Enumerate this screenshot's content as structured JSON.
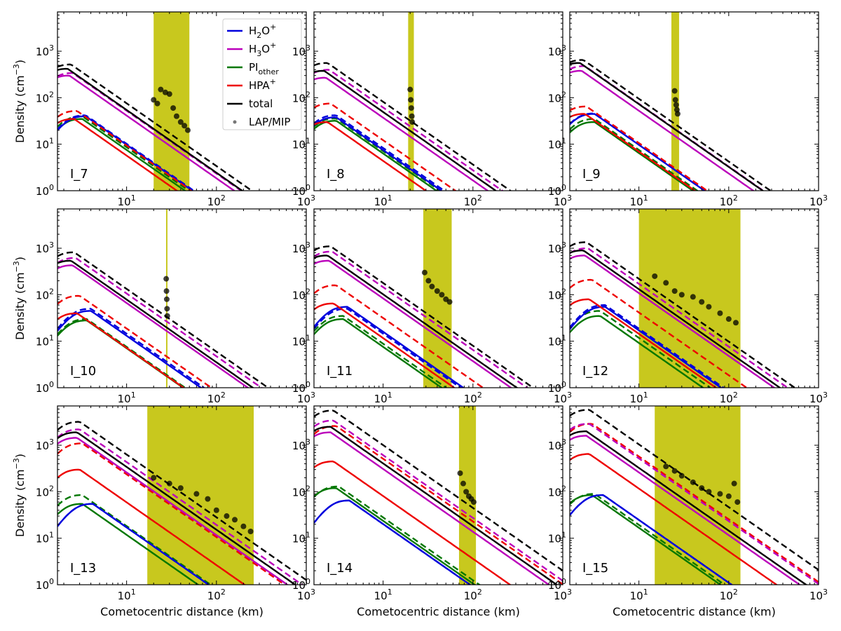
{
  "chart_data": {
    "type": "line",
    "layout": "3x3 grid of log-log panels",
    "shared_x_label": "Cometocentric distance (km)",
    "shared_y_label": "Density (cm⁻³)",
    "y_label_parts": {
      "main": "Density (cm",
      "sup": "−3",
      "close": ")"
    },
    "x_scale": "log",
    "y_scale": "log",
    "xlim": [
      1.7,
      1000
    ],
    "ylim": [
      1,
      7000
    ],
    "x_ticks": [
      10,
      100,
      1000
    ],
    "x_tick_labels": [
      {
        "base": "10",
        "exp": "1"
      },
      {
        "base": "10",
        "exp": "2"
      },
      {
        "base": "10",
        "exp": "3"
      }
    ],
    "y_ticks": [
      1,
      10,
      100,
      1000
    ],
    "y_tick_labels": [
      {
        "base": "10",
        "exp": "0"
      },
      {
        "base": "10",
        "exp": "1"
      },
      {
        "base": "10",
        "exp": "2"
      },
      {
        "base": "10",
        "exp": "3"
      }
    ],
    "line_styles": {
      "solid": "model (solid)",
      "dashed": "model (dashed)"
    },
    "legend": {
      "location": "upper right of first panel",
      "entries": [
        {
          "key": "h2o",
          "label": {
            "main": "H",
            "sub": "2",
            "rest": "O",
            "sup": "+"
          },
          "color": "#0000dd",
          "kind": "line"
        },
        {
          "key": "h3o",
          "label": {
            "main": "H",
            "sub": "3",
            "rest": "O",
            "sup": "+"
          },
          "color": "#bb00bb",
          "kind": "line"
        },
        {
          "key": "pi",
          "label": {
            "main": "PI",
            "sub": "other",
            "rest": "",
            "sup": ""
          },
          "color": "#007700",
          "kind": "line"
        },
        {
          "key": "hpa",
          "label": {
            "main": "HPA",
            "sub": "",
            "rest": "",
            "sup": "+"
          },
          "color": "#ee0000",
          "kind": "line"
        },
        {
          "key": "total",
          "label": {
            "main": "total",
            "sub": "",
            "rest": "",
            "sup": ""
          },
          "color": "#000000",
          "kind": "line"
        },
        {
          "key": "obs",
          "label": {
            "main": "LAP/MIP",
            "sub": "",
            "rest": "",
            "sup": ""
          },
          "color": "#777777",
          "kind": "scatter"
        }
      ]
    },
    "shade_color": "#c8c81e",
    "panels": [
      {
        "label": "I_7",
        "shade": [
          20,
          50
        ],
        "peaks": {
          "total": [
            2.2,
            420,
            2.4,
            520
          ],
          "h3o": [
            2.3,
            300,
            2.5,
            340
          ],
          "h2o": [
            3.5,
            40,
            3.5,
            42
          ],
          "pi": [
            3.2,
            35,
            3.2,
            40
          ],
          "hpa": [
            2.6,
            35,
            2.8,
            52
          ]
        },
        "observed": [
          {
            "x": 20,
            "y": 90
          },
          {
            "x": 22,
            "y": 75
          },
          {
            "x": 24,
            "y": 150
          },
          {
            "x": 27,
            "y": 130
          },
          {
            "x": 30,
            "y": 120
          },
          {
            "x": 33,
            "y": 60
          },
          {
            "x": 36,
            "y": 40
          },
          {
            "x": 40,
            "y": 30
          },
          {
            "x": 44,
            "y": 25
          },
          {
            "x": 48,
            "y": 20
          }
        ]
      },
      {
        "label": "I_8",
        "shade": [
          19,
          22
        ],
        "peaks": {
          "total": [
            2.2,
            380,
            2.4,
            560
          ],
          "h3o": [
            2.3,
            270,
            2.5,
            400
          ],
          "h2o": [
            3.0,
            38,
            3.0,
            42
          ],
          "pi": [
            3.0,
            32,
            3.0,
            36
          ],
          "hpa": [
            2.4,
            30,
            2.6,
            75
          ]
        },
        "observed": [
          {
            "x": 20,
            "y": 150
          },
          {
            "x": 20.3,
            "y": 90
          },
          {
            "x": 20.6,
            "y": 60
          },
          {
            "x": 20.9,
            "y": 40
          },
          {
            "x": 21.1,
            "y": 30
          }
        ]
      },
      {
        "label": "I_9",
        "shade": [
          23,
          28
        ],
        "peaks": {
          "total": [
            2.2,
            560,
            2.4,
            650
          ],
          "h3o": [
            2.3,
            380,
            2.5,
            480
          ],
          "h2o": [
            3.2,
            45,
            3.2,
            46
          ],
          "pi": [
            3.2,
            30,
            3.2,
            35
          ],
          "hpa": [
            2.5,
            45,
            2.6,
            65
          ]
        },
        "observed": [
          {
            "x": 25,
            "y": 140
          },
          {
            "x": 25.5,
            "y": 90
          },
          {
            "x": 26,
            "y": 70
          },
          {
            "x": 26.5,
            "y": 55
          },
          {
            "x": 27,
            "y": 45
          }
        ]
      },
      {
        "label": "I_10",
        "shade": [
          27.5,
          28.5
        ],
        "peaks": {
          "total": [
            2.4,
            540,
            2.6,
            820
          ],
          "h3o": [
            2.5,
            430,
            2.7,
            620
          ],
          "h2o": [
            4.0,
            45,
            4.0,
            50
          ],
          "pi": [
            3.6,
            28,
            3.6,
            30
          ],
          "hpa": [
            2.8,
            40,
            3.0,
            95
          ]
        },
        "observed": [
          {
            "x": 27.6,
            "y": 220
          },
          {
            "x": 27.8,
            "y": 120
          },
          {
            "x": 28,
            "y": 80
          },
          {
            "x": 28.2,
            "y": 50
          },
          {
            "x": 28.4,
            "y": 35
          }
        ]
      },
      {
        "label": "I_11",
        "shade": [
          28,
          58
        ],
        "peaks": {
          "total": [
            2.4,
            700,
            2.6,
            1100
          ],
          "h3o": [
            2.5,
            540,
            2.7,
            850
          ],
          "h2o": [
            4.0,
            55,
            4.0,
            50
          ],
          "pi": [
            3.6,
            30,
            3.6,
            35
          ],
          "hpa": [
            2.8,
            65,
            3.0,
            160
          ]
        },
        "observed": [
          {
            "x": 29,
            "y": 300
          },
          {
            "x": 32,
            "y": 200
          },
          {
            "x": 35,
            "y": 150
          },
          {
            "x": 40,
            "y": 120
          },
          {
            "x": 45,
            "y": 100
          },
          {
            "x": 50,
            "y": 80
          },
          {
            "x": 55,
            "y": 70
          }
        ]
      },
      {
        "label": "I_12",
        "shade": [
          10,
          135
        ],
        "peaks": {
          "total": [
            2.4,
            900,
            2.6,
            1350
          ],
          "h3o": [
            2.5,
            700,
            2.7,
            1000
          ],
          "h2o": [
            4.2,
            55,
            4.2,
            60
          ],
          "pi": [
            3.7,
            35,
            3.7,
            45
          ],
          "hpa": [
            2.8,
            80,
            3.0,
            210
          ]
        },
        "observed": [
          {
            "x": 15,
            "y": 250
          },
          {
            "x": 20,
            "y": 180
          },
          {
            "x": 25,
            "y": 120
          },
          {
            "x": 30,
            "y": 100
          },
          {
            "x": 40,
            "y": 90
          },
          {
            "x": 50,
            "y": 70
          },
          {
            "x": 60,
            "y": 55
          },
          {
            "x": 80,
            "y": 40
          },
          {
            "x": 100,
            "y": 30
          },
          {
            "x": 120,
            "y": 25
          }
        ]
      },
      {
        "label": "I_13",
        "shade": [
          17,
          260
        ],
        "peaks": {
          "total": [
            2.8,
            1900,
            3.0,
            3200
          ],
          "h3o": [
            2.8,
            1450,
            3.0,
            2200
          ],
          "h2o": [
            4.2,
            55,
            4.2,
            55
          ],
          "pi": [
            3.2,
            55,
            3.2,
            85
          ],
          "hpa": [
            3.0,
            300,
            3.2,
            1100
          ]
        },
        "observed": [
          {
            "x": 20,
            "y": 200
          },
          {
            "x": 30,
            "y": 150
          },
          {
            "x": 40,
            "y": 120
          },
          {
            "x": 60,
            "y": 90
          },
          {
            "x": 80,
            "y": 70
          },
          {
            "x": 100,
            "y": 40
          },
          {
            "x": 130,
            "y": 30
          },
          {
            "x": 160,
            "y": 25
          },
          {
            "x": 200,
            "y": 18
          },
          {
            "x": 240,
            "y": 14
          }
        ]
      },
      {
        "label": "I_14",
        "shade": [
          70,
          108
        ],
        "peaks": {
          "total": [
            2.6,
            2500,
            2.8,
            5600
          ],
          "h3o": [
            2.6,
            1900,
            2.8,
            3400
          ],
          "h2o": [
            4.2,
            65,
            4.2,
            65
          ],
          "pi": [
            3.0,
            120,
            3.2,
            130
          ],
          "hpa": [
            2.8,
            450,
            3.0,
            2600
          ]
        },
        "observed": [
          {
            "x": 72,
            "y": 250
          },
          {
            "x": 78,
            "y": 150
          },
          {
            "x": 84,
            "y": 100
          },
          {
            "x": 90,
            "y": 80
          },
          {
            "x": 96,
            "y": 70
          },
          {
            "x": 102,
            "y": 60
          }
        ]
      },
      {
        "label": "I_15",
        "shade": [
          15,
          135
        ],
        "peaks": {
          "total": [
            2.6,
            2000,
            2.8,
            5800
          ],
          "h3o": [
            2.6,
            1600,
            2.8,
            2900
          ],
          "h2o": [
            4.0,
            85,
            4.0,
            85
          ],
          "pi": [
            3.0,
            85,
            3.2,
            90
          ],
          "hpa": [
            2.8,
            650,
            3.0,
            2900
          ]
        },
        "observed": [
          {
            "x": 20,
            "y": 350
          },
          {
            "x": 25,
            "y": 280
          },
          {
            "x": 30,
            "y": 220
          },
          {
            "x": 40,
            "y": 160
          },
          {
            "x": 50,
            "y": 120
          },
          {
            "x": 60,
            "y": 100
          },
          {
            "x": 80,
            "y": 90
          },
          {
            "x": 100,
            "y": 80
          },
          {
            "x": 115,
            "y": 150
          },
          {
            "x": 125,
            "y": 60
          }
        ]
      }
    ]
  }
}
